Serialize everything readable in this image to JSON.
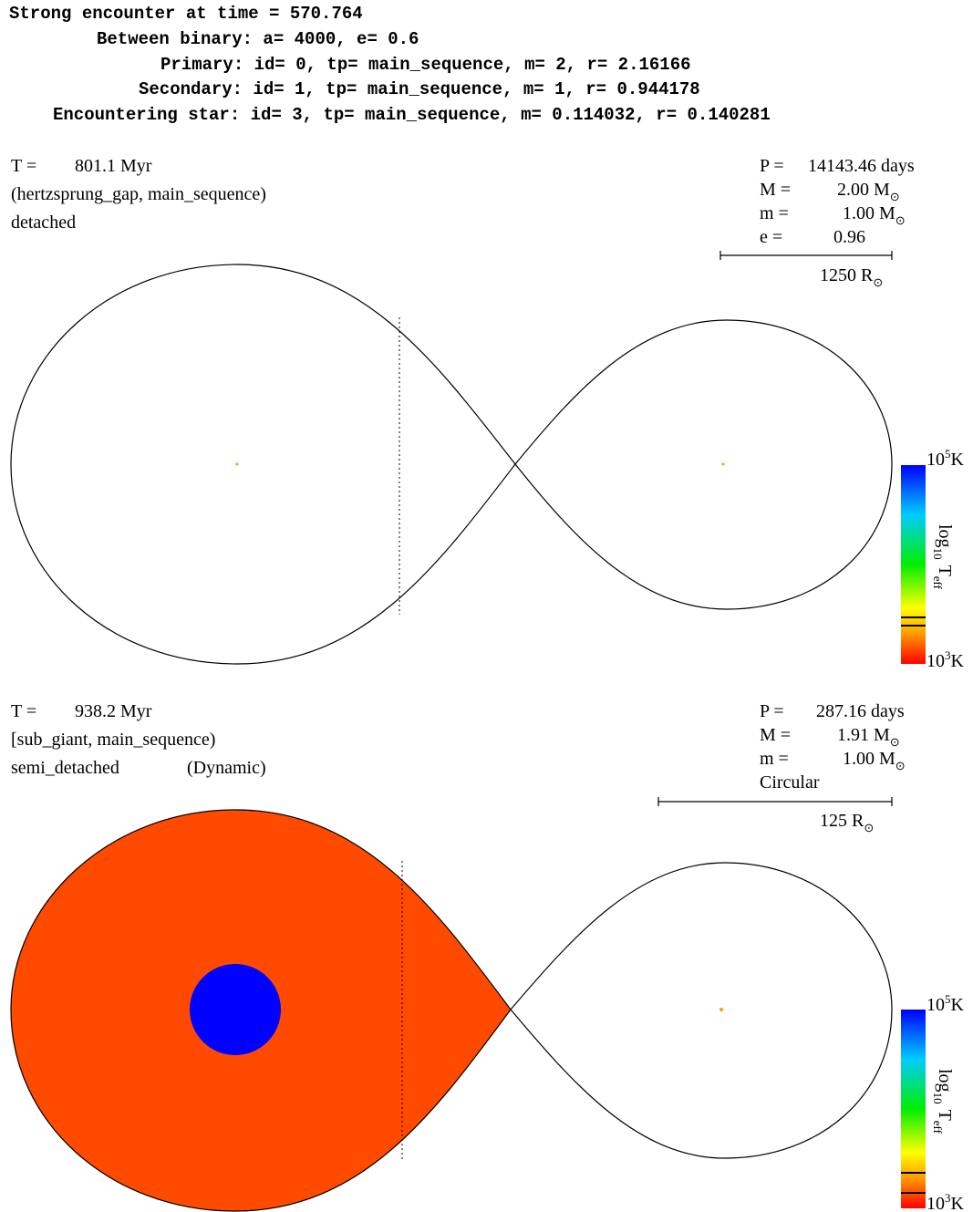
{
  "header": {
    "lines": [
      "Strong encounter at time = 570.764",
      "Between binary: a= 4000, e= 0.6",
      "Primary: id= 0, tp= main_sequence, m= 2, r= 2.16166",
      "Secondary: id= 1, tp= main_sequence, m= 1, r= 0.944178",
      "Encountering star: id= 3, tp= main_sequence, m= 0.114032, r= 0.140281"
    ]
  },
  "panels": [
    {
      "time": {
        "label": "T =",
        "value": "801.1 Myr"
      },
      "stars": "(hertzsprung_gap, main_sequence)",
      "state": "detached",
      "info": [
        {
          "label": "P =",
          "value": "14143.46 days"
        },
        {
          "label": "M =",
          "value": "2.00 M",
          "sub": "⊙"
        },
        {
          "label": "m =",
          "value": "1.00 M",
          "sub": "⊙"
        },
        {
          "label": "e =",
          "value": "0.96"
        }
      ],
      "scale": {
        "value": "1250 R",
        "sub": "⊙"
      },
      "colorbar": {
        "top": {
          "base": "10",
          "exp": "5",
          "unit": "K"
        },
        "bottom": {
          "base": "10",
          "exp": "3",
          "unit": "K"
        },
        "label": {
          "log": "log",
          "sub": "10",
          "T": "T",
          "eff": "eff"
        }
      }
    },
    {
      "time": {
        "label": "T =",
        "value": "938.2 Myr"
      },
      "stars": "[sub_giant, main_sequence)",
      "state": "semi_detached",
      "note": "(Dynamic)",
      "info": [
        {
          "label": "P =",
          "value": "287.16 days"
        },
        {
          "label": "M =",
          "value": "1.91 M",
          "sub": "⊙"
        },
        {
          "label": "m =",
          "value": "1.00 M",
          "sub": "⊙"
        },
        {
          "label": "Circular"
        }
      ],
      "scale": {
        "value": "125 R",
        "sub": "⊙"
      },
      "colorbar": {
        "top": {
          "base": "10",
          "exp": "5",
          "unit": "K"
        },
        "bottom": {
          "base": "10",
          "exp": "3",
          "unit": "K"
        },
        "label": {
          "log": "log",
          "sub": "10",
          "T": "T",
          "eff": "eff"
        }
      }
    }
  ]
}
